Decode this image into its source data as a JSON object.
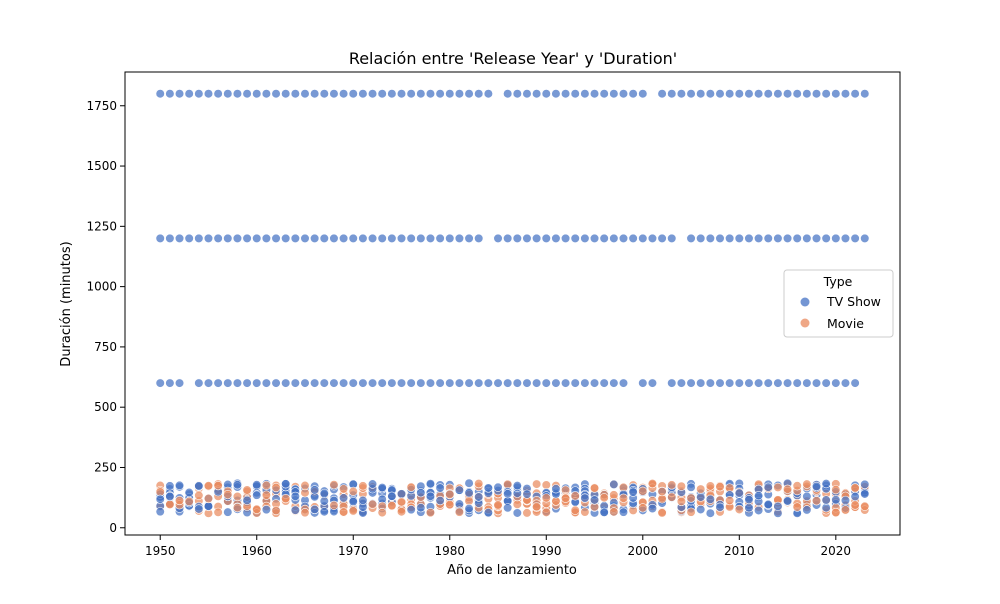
{
  "chart_data": {
    "type": "scatter",
    "title": "Relación entre 'Release Year' y 'Duration'",
    "xlabel": "Año de lanzamiento",
    "ylabel": "Duración (minutos)",
    "xlim": [
      1946.35,
      2026.65
    ],
    "ylim": [
      -30,
      1890
    ],
    "xticks": [
      1950,
      1960,
      1970,
      1980,
      1990,
      2000,
      2010,
      2020
    ],
    "yticks": [
      0,
      250,
      500,
      750,
      1000,
      1250,
      1500,
      1750
    ],
    "grid": false,
    "legend": {
      "title": "Type",
      "placement": "right"
    },
    "series": [
      {
        "name": "TV Show",
        "color": "#4472c4",
        "bands": [
          {
            "y": 1800,
            "missing_years": [
              1985,
              2001
            ]
          },
          {
            "y": 1200,
            "missing_years": [
              1984,
              2004
            ]
          },
          {
            "y": 600,
            "missing_years": [
              1953,
              1999,
              2002
            ]
          }
        ],
        "low_range": [
          60,
          185
        ]
      },
      {
        "name": "Movie",
        "color": "#e98a5e",
        "low_range": [
          60,
          185
        ]
      }
    ],
    "year_range": [
      1950,
      2023
    ]
  }
}
